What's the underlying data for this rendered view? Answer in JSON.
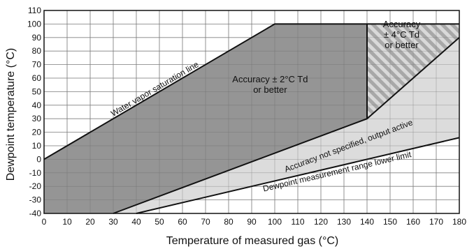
{
  "chart_data": {
    "type": "area",
    "xlabel": "Temperature of measured gas (°C)",
    "ylabel": "Dewpoint temperature (°C)",
    "xlim": [
      0,
      180
    ],
    "ylim": [
      -40,
      110
    ],
    "xticks": [
      0,
      10,
      20,
      30,
      40,
      50,
      60,
      70,
      80,
      90,
      100,
      110,
      120,
      130,
      140,
      150,
      160,
      170,
      180
    ],
    "yticks": [
      -40,
      -30,
      -20,
      -10,
      0,
      10,
      20,
      30,
      40,
      50,
      60,
      70,
      80,
      90,
      100,
      110
    ],
    "grid": true,
    "regions": [
      {
        "name": "Accuracy ± 2°C Td or better",
        "fill": "#8c8c8c",
        "polygon": [
          [
            0,
            0
          ],
          [
            100,
            100
          ],
          [
            140,
            100
          ],
          [
            140,
            30
          ],
          [
            30,
            -40
          ],
          [
            0,
            -40
          ]
        ]
      },
      {
        "name": "Accuracy ± 4°C Td or better",
        "fill": "#d9d9d9",
        "hatch": "#a8a8a8",
        "polygon": [
          [
            140,
            100
          ],
          [
            180,
            100
          ],
          [
            180,
            90
          ],
          [
            160,
            60
          ],
          [
            140,
            30
          ]
        ]
      },
      {
        "name": "Accuracy not specified, output active",
        "fill": "#d9d9d9",
        "polygon": [
          [
            30,
            -40
          ],
          [
            140,
            30
          ],
          [
            160,
            60
          ],
          [
            180,
            90
          ],
          [
            180,
            16
          ],
          [
            40,
            -40
          ]
        ]
      }
    ],
    "lines": [
      {
        "name": "Water vapor saturation line",
        "points": [
          [
            0,
            0
          ],
          [
            100,
            100
          ],
          [
            180,
            100
          ]
        ]
      },
      {
        "name": "Dewpoint measurement range lower limit",
        "points": [
          [
            40,
            -40
          ],
          [
            180,
            16
          ]
        ]
      },
      {
        "name": "accuracy-boundary-lower",
        "points": [
          [
            30,
            -40
          ],
          [
            140,
            30
          ],
          [
            160,
            60
          ],
          [
            180,
            90
          ]
        ]
      },
      {
        "name": "accuracy-boundary-vertical",
        "points": [
          [
            140,
            30
          ],
          [
            140,
            100
          ]
        ]
      }
    ],
    "annotations": [
      {
        "lines": [
          "Accuracy  ± 2°C Td",
          "or better"
        ],
        "at": [
          98,
          55
        ]
      },
      {
        "lines": [
          "Accuracy",
          "± 4°C Td",
          "or better"
        ],
        "at": [
          155,
          92
        ]
      },
      {
        "lines": [
          "Water vapor saturation line"
        ],
        "at": [
          48,
          52
        ],
        "along": [
          [
            0,
            0
          ],
          [
            100,
            100
          ]
        ]
      },
      {
        "lines": [
          "Accuracy not specified, output active"
        ],
        "at": [
          132,
          10
        ],
        "along": [
          [
            30,
            -40
          ],
          [
            140,
            30
          ]
        ]
      },
      {
        "lines": [
          "Dewpoint measurement range lower limit"
        ],
        "at": [
          127,
          -9
        ],
        "along": [
          [
            40,
            -40
          ],
          [
            180,
            16
          ]
        ]
      }
    ]
  }
}
